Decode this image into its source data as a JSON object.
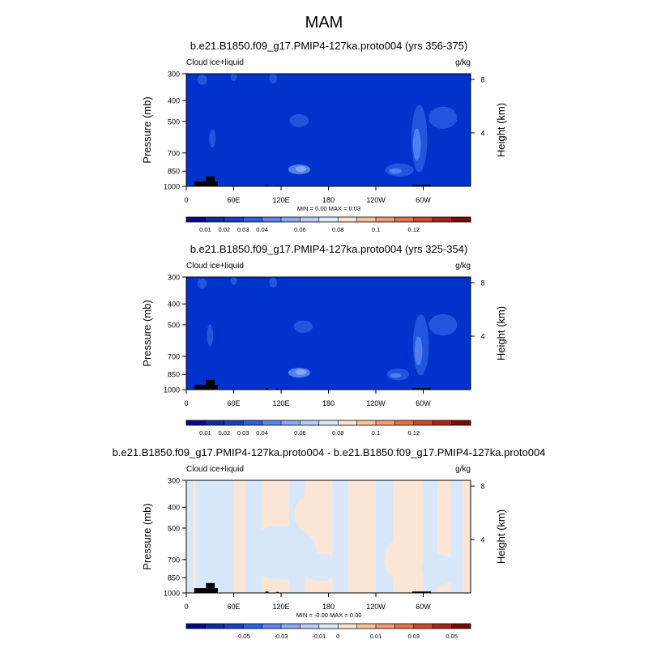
{
  "figure": {
    "title": "MAM"
  },
  "colors": {
    "land": "#000000",
    "field_blue": "#0033cc",
    "blob_mid": "#2255dd",
    "blob_light": "#4f7ff0",
    "blob_pale": "#86a8f0",
    "diff_neg": "#d8e8fa",
    "diff_pos": "#fbe6d6",
    "scale_1": [
      "#08088f",
      "#0d2aa8",
      "#1a3fc4",
      "#2e5fe6",
      "#5d86f0",
      "#8aaaf5",
      "#b7cdfa",
      "#dde9fd",
      "#fde3cf",
      "#f9c0a0",
      "#f29b76",
      "#e5714e",
      "#cf472e",
      "#aa2316",
      "#7a0a08"
    ],
    "scale_2": [
      "#08088f",
      "#0d2aa8",
      "#1a3fc4",
      "#2e5fe6",
      "#5d86f0",
      "#8aaaf5",
      "#b7cdfa",
      "#dde9fd",
      "#fde3cf",
      "#f9c0a0",
      "#f29b76",
      "#e5714e",
      "#cf472e",
      "#aa2316",
      "#7a0a08"
    ],
    "scale_3": [
      "#08088f",
      "#0d2aa8",
      "#1a3fc4",
      "#2e5fe6",
      "#5d86f0",
      "#8aaaf5",
      "#b7cdfa",
      "#dde9fd",
      "#fde3cf",
      "#f9c0a0",
      "#f29b76",
      "#e5714e",
      "#cf472e",
      "#aa2316",
      "#7a0a08"
    ]
  },
  "chart_data": [
    {
      "type": "heatmap",
      "title": "b.e21.B1850.f09_g17.PMIP4-127ka.proto004 (yrs 356-375)",
      "left_label": "Cloud ice+liquid",
      "right_label": "g/kg",
      "ylabel": "Pressure (mb)",
      "ylabel_right": "Height (km)",
      "x_ticks": [
        "0",
        "60E",
        "120E",
        "180",
        "120W",
        "60W"
      ],
      "x_tick_values": [
        0,
        60,
        120,
        180,
        240,
        300
      ],
      "xlim": [
        0,
        360
      ],
      "y_ticks": [
        "300",
        "400",
        "500",
        "700",
        "850",
        "1000"
      ],
      "y_tick_values": [
        300,
        400,
        500,
        700,
        850,
        1000
      ],
      "ylim": [
        1000,
        300
      ],
      "y_scale": "log",
      "right_ticks": [
        "8",
        "4"
      ],
      "right_tick_values": [
        8,
        4
      ],
      "stats": "MIN =   0.00  MAX =   0.03",
      "min": 0.0,
      "max": 0.03,
      "colorbar_labels": [
        "0.01",
        "0.02",
        "0.03",
        "0.04",
        "0.06",
        "0.08",
        "0.1",
        "0.12"
      ],
      "background_color": "field_blue",
      "blobs": [
        {
          "lon": 143,
          "p": 835,
          "rlon": 14,
          "rp": 45,
          "color": "blob_light"
        },
        {
          "lon": 145,
          "p": 830,
          "rlon": 7,
          "rp": 25,
          "color": "blob_pale"
        },
        {
          "lon": 295,
          "p": 600,
          "rlon": 10,
          "rp": 260,
          "color": "blob_mid"
        },
        {
          "lon": 292,
          "p": 640,
          "rlon": 5,
          "rp": 120,
          "color": "blob_light"
        },
        {
          "lon": 270,
          "p": 840,
          "rlon": 18,
          "rp": 60,
          "color": "blob_mid"
        },
        {
          "lon": 265,
          "p": 850,
          "rlon": 8,
          "rp": 25,
          "color": "blob_light"
        },
        {
          "lon": 33,
          "p": 600,
          "rlon": 4,
          "rp": 60,
          "color": "blob_mid"
        },
        {
          "lon": 143,
          "p": 495,
          "rlon": 12,
          "rp": 35,
          "color": "blob_mid"
        },
        {
          "lon": 325,
          "p": 480,
          "rlon": 18,
          "rp": 60,
          "color": "blob_mid"
        },
        {
          "lon": 110,
          "p": 315,
          "rlon": 5,
          "rp": 18,
          "color": "blob_mid"
        },
        {
          "lon": 60,
          "p": 310,
          "rlon": 4,
          "rp": 14,
          "color": "blob_mid"
        },
        {
          "lon": 20,
          "p": 320,
          "rlon": 6,
          "rp": 18,
          "color": "blob_mid"
        }
      ],
      "land": [
        {
          "lon0": 10,
          "lon1": 40,
          "p0": 950,
          "p1": 1000
        },
        {
          "lon0": 25,
          "lon1": 36,
          "p0": 900,
          "p1": 950
        },
        {
          "lon0": 100,
          "lon1": 104,
          "p0": 985,
          "p1": 1000
        },
        {
          "lon0": 114,
          "lon1": 117,
          "p0": 990,
          "p1": 1000
        },
        {
          "lon0": 286,
          "lon1": 310,
          "p0": 985,
          "p1": 1000
        }
      ]
    },
    {
      "type": "heatmap",
      "title": "b.e21.B1850.f09_g17.PMIP4-127ka.proto004 (yrs 325-354)",
      "left_label": "Cloud ice+liquid",
      "right_label": "g/kg",
      "ylabel": "Pressure (mb)",
      "ylabel_right": "Height (km)",
      "x_ticks": [
        "0",
        "60E",
        "120E",
        "180",
        "120W",
        "60W"
      ],
      "x_tick_values": [
        0,
        60,
        120,
        180,
        240,
        300
      ],
      "xlim": [
        0,
        360
      ],
      "y_ticks": [
        "300",
        "400",
        "500",
        "700",
        "850",
        "1000"
      ],
      "y_tick_values": [
        300,
        400,
        500,
        700,
        850,
        1000
      ],
      "ylim": [
        1000,
        300
      ],
      "y_scale": "log",
      "right_ticks": [
        "8",
        "4"
      ],
      "right_tick_values": [
        8,
        4
      ],
      "stats": "",
      "colorbar_labels": [
        "0.01",
        "0.02",
        "0.03",
        "0.04",
        "0.06",
        "0.08",
        "0.1",
        "0.12"
      ],
      "background_color": "field_blue",
      "blobs": [
        {
          "lon": 143,
          "p": 835,
          "rlon": 14,
          "rp": 45,
          "color": "blob_light"
        },
        {
          "lon": 145,
          "p": 830,
          "rlon": 7,
          "rp": 25,
          "color": "blob_pale"
        },
        {
          "lon": 297,
          "p": 620,
          "rlon": 10,
          "rp": 240,
          "color": "blob_mid"
        },
        {
          "lon": 294,
          "p": 660,
          "rlon": 5,
          "rp": 110,
          "color": "blob_light"
        },
        {
          "lon": 268,
          "p": 850,
          "rlon": 14,
          "rp": 55,
          "color": "blob_mid"
        },
        {
          "lon": 265,
          "p": 860,
          "rlon": 7,
          "rp": 22,
          "color": "blob_light"
        },
        {
          "lon": 30,
          "p": 560,
          "rlon": 4,
          "rp": 70,
          "color": "blob_mid"
        },
        {
          "lon": 148,
          "p": 510,
          "rlon": 12,
          "rp": 35,
          "color": "blob_mid"
        },
        {
          "lon": 325,
          "p": 500,
          "rlon": 18,
          "rp": 60,
          "color": "blob_mid"
        },
        {
          "lon": 110,
          "p": 318,
          "rlon": 5,
          "rp": 18,
          "color": "blob_mid"
        },
        {
          "lon": 60,
          "p": 312,
          "rlon": 4,
          "rp": 14,
          "color": "blob_mid"
        },
        {
          "lon": 20,
          "p": 322,
          "rlon": 6,
          "rp": 18,
          "color": "blob_mid"
        }
      ],
      "land": [
        {
          "lon0": 10,
          "lon1": 40,
          "p0": 950,
          "p1": 1000
        },
        {
          "lon0": 25,
          "lon1": 36,
          "p0": 900,
          "p1": 950
        },
        {
          "lon0": 100,
          "lon1": 104,
          "p0": 985,
          "p1": 1000
        },
        {
          "lon0": 114,
          "lon1": 117,
          "p0": 990,
          "p1": 1000
        },
        {
          "lon0": 286,
          "lon1": 310,
          "p0": 985,
          "p1": 1000
        }
      ]
    },
    {
      "type": "heatmap",
      "title": "b.e21.B1850.f09_g17.PMIP4-127ka.proto004 - b.e21.B1850.f09_g17.PMIP4-127ka.proto004",
      "left_label": "Cloud ice+liquid",
      "right_label": "g/kg",
      "ylabel": "Pressure (mb)",
      "ylabel_right": "Height (km)",
      "x_ticks": [
        "0",
        "60E",
        "120E",
        "180",
        "120W",
        "60W"
      ],
      "x_tick_values": [
        0,
        60,
        120,
        180,
        240,
        300
      ],
      "xlim": [
        0,
        360
      ],
      "y_ticks": [
        "300",
        "400",
        "500",
        "700",
        "850",
        "1000"
      ],
      "y_tick_values": [
        300,
        400,
        500,
        700,
        850,
        1000
      ],
      "ylim": [
        1000,
        300
      ],
      "y_scale": "log",
      "right_ticks": [
        "8",
        "4"
      ],
      "right_tick_values": [
        8,
        4
      ],
      "stats": "MIN =  -0.00  MAX =   0.00",
      "min": -0.0,
      "max": 0.0,
      "colorbar_labels": [
        "-0.05",
        "-0.03",
        "-0.01",
        "0",
        "0.01",
        "0.03",
        "0.05"
      ],
      "background_color": "diff_pos",
      "bands": [
        {
          "lon0": 0,
          "lon1": 8,
          "color": "diff_neg"
        },
        {
          "lon0": 12,
          "lon1": 60,
          "color": "diff_neg"
        },
        {
          "lon0": 75,
          "lon1": 95,
          "color": "diff_neg"
        },
        {
          "lon0": 130,
          "lon1": 150,
          "color": "diff_neg"
        },
        {
          "lon0": 185,
          "lon1": 205,
          "color": "diff_neg"
        },
        {
          "lon0": 240,
          "lon1": 262,
          "color": "diff_neg"
        },
        {
          "lon0": 300,
          "lon1": 318,
          "color": "diff_neg"
        },
        {
          "lon0": 335,
          "lon1": 350,
          "color": "diff_neg"
        }
      ],
      "blobs": [
        {
          "lon": 120,
          "p": 650,
          "rlon": 45,
          "rp": 220,
          "color": "diff_neg"
        },
        {
          "lon": 170,
          "p": 760,
          "rlon": 25,
          "rp": 120,
          "color": "diff_neg"
        },
        {
          "lon": 320,
          "p": 780,
          "rlon": 22,
          "rp": 140,
          "color": "diff_neg"
        },
        {
          "lon": 155,
          "p": 430,
          "rlon": 18,
          "rp": 90,
          "color": "diff_pos"
        },
        {
          "lon": 265,
          "p": 700,
          "rlon": 14,
          "rp": 150,
          "color": "diff_pos"
        }
      ],
      "land": [
        {
          "lon0": 10,
          "lon1": 40,
          "p0": 950,
          "p1": 1000
        },
        {
          "lon0": 25,
          "lon1": 36,
          "p0": 900,
          "p1": 950
        },
        {
          "lon0": 100,
          "lon1": 104,
          "p0": 985,
          "p1": 1000
        },
        {
          "lon0": 114,
          "lon1": 117,
          "p0": 990,
          "p1": 1000
        },
        {
          "lon0": 286,
          "lon1": 310,
          "p0": 985,
          "p1": 1000
        }
      ]
    }
  ]
}
